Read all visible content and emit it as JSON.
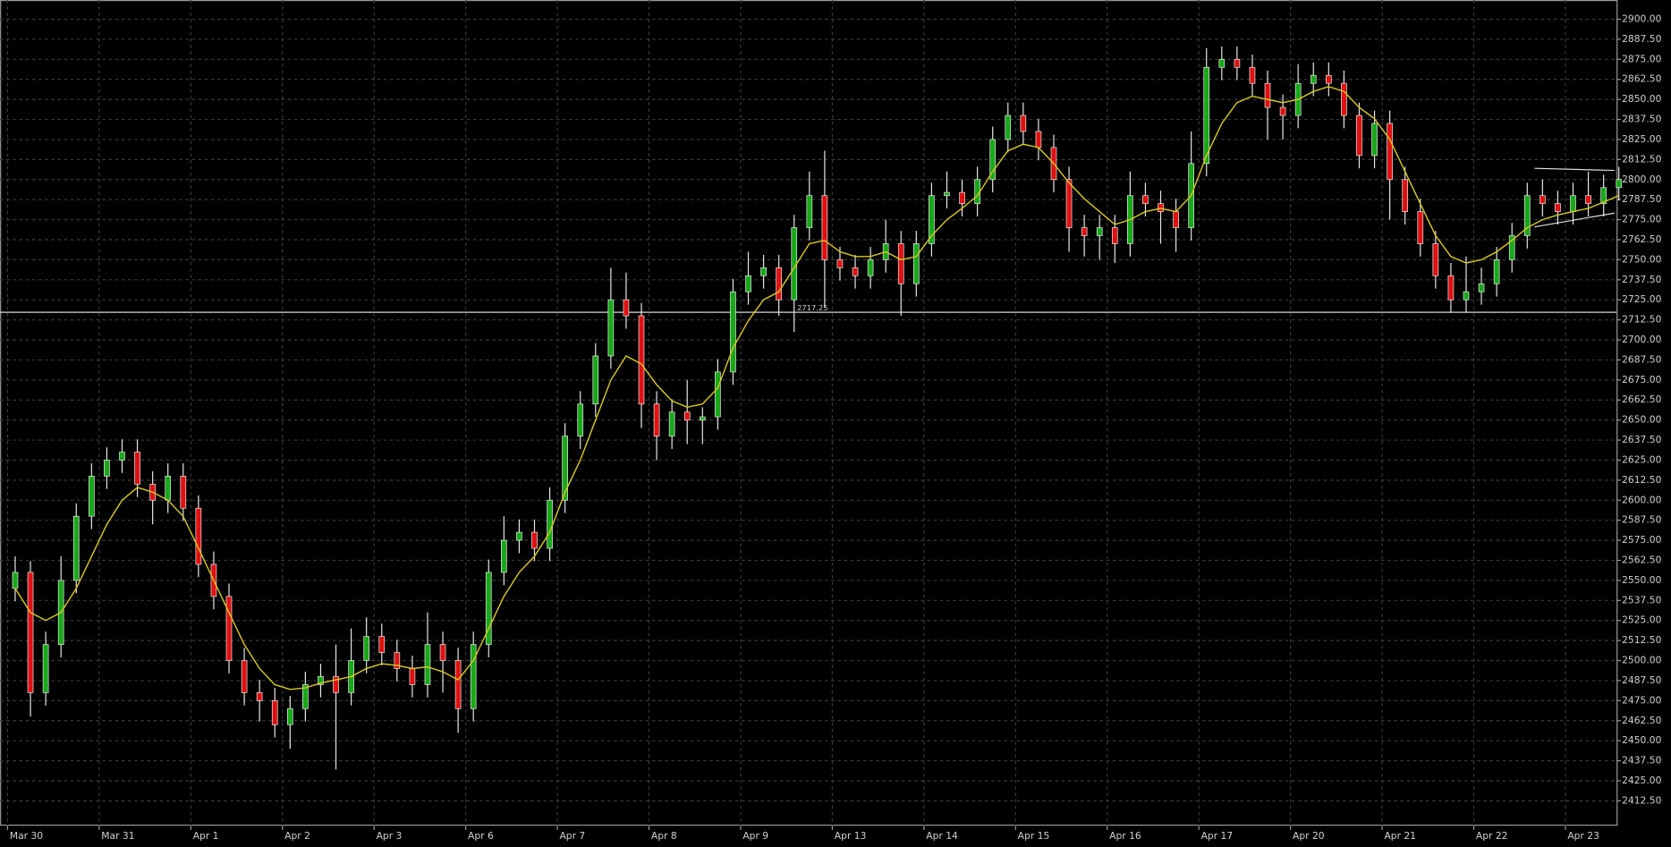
{
  "chart_data": {
    "type": "candlestick",
    "categories": [
      "Mar 30",
      null,
      null,
      null,
      null,
      null,
      "Mar 31",
      null,
      null,
      null,
      null,
      null,
      "Apr 1",
      null,
      null,
      null,
      null,
      null,
      "Apr 2",
      null,
      null,
      null,
      null,
      null,
      "Apr 3",
      null,
      null,
      null,
      null,
      null,
      "Apr 6",
      null,
      null,
      null,
      null,
      null,
      "Apr 7",
      null,
      null,
      null,
      null,
      null,
      "Apr 8",
      null,
      null,
      null,
      null,
      null,
      "Apr 9",
      null,
      null,
      null,
      null,
      null,
      "Apr 13",
      null,
      null,
      null,
      null,
      null,
      "Apr 14",
      null,
      null,
      null,
      null,
      null,
      "Apr 15",
      null,
      null,
      null,
      null,
      null,
      "Apr 16",
      null,
      null,
      null,
      null,
      null,
      "Apr 17",
      null,
      null,
      null,
      null,
      null,
      "Apr 20",
      null,
      null,
      null,
      null,
      null,
      "Apr 21",
      null,
      null,
      null,
      null,
      null,
      "Apr 22",
      null,
      null,
      null,
      null,
      null,
      "Apr 23",
      null,
      null,
      null
    ],
    "open": [
      2545,
      2555,
      2480,
      2510,
      2550,
      2590,
      2615,
      2625,
      2630,
      2610,
      2600,
      2615,
      2595,
      2560,
      2540,
      2500,
      2480,
      2475,
      2460,
      2470,
      2485,
      2490,
      2480,
      2500,
      2515,
      2505,
      2495,
      2485,
      2510,
      2500,
      2470,
      2510,
      2555,
      2575,
      2580,
      2570,
      2600,
      2640,
      2660,
      2690,
      2725,
      2715,
      2660,
      2640,
      2655,
      2650,
      2652,
      2680,
      2730,
      2740,
      2745,
      2725,
      2770,
      2790,
      2750,
      2745,
      2740,
      2750,
      2760,
      2735,
      2760,
      2790,
      2792,
      2785,
      2800,
      2825,
      2840,
      2830,
      2820,
      2800,
      2770,
      2765,
      2770,
      2760,
      2790,
      2785,
      2780,
      2770,
      2810,
      2870,
      2875,
      2870,
      2860,
      2845,
      2840,
      2860,
      2865,
      2860,
      2840,
      2815,
      2835,
      2800,
      2780,
      2760,
      2740,
      2725,
      2730,
      2735,
      2750,
      2765,
      2790,
      2785,
      2780,
      2790,
      2785,
      2795
    ],
    "high": [
      2565,
      2562,
      2518,
      2565,
      2598,
      2623,
      2633,
      2638,
      2638,
      2618,
      2623,
      2623,
      2603,
      2568,
      2548,
      2508,
      2488,
      2483,
      2478,
      2493,
      2498,
      2510,
      2520,
      2527,
      2523,
      2513,
      2503,
      2530,
      2518,
      2508,
      2518,
      2563,
      2590,
      2588,
      2588,
      2608,
      2648,
      2668,
      2698,
      2745,
      2742,
      2723,
      2668,
      2663,
      2675,
      2658,
      2688,
      2738,
      2755,
      2753,
      2753,
      2778,
      2805,
      2818,
      2758,
      2753,
      2758,
      2775,
      2768,
      2768,
      2798,
      2805,
      2800,
      2808,
      2833,
      2848,
      2848,
      2838,
      2828,
      2808,
      2778,
      2778,
      2778,
      2805,
      2798,
      2793,
      2788,
      2830,
      2882,
      2883,
      2883,
      2878,
      2868,
      2853,
      2872,
      2873,
      2873,
      2868,
      2848,
      2843,
      2843,
      2808,
      2788,
      2768,
      2748,
      2752,
      2745,
      2758,
      2773,
      2798,
      2800,
      2793,
      2798,
      2805,
      2803,
      2808
    ],
    "low": [
      2537,
      2465,
      2472,
      2502,
      2542,
      2582,
      2607,
      2617,
      2602,
      2585,
      2592,
      2587,
      2552,
      2532,
      2492,
      2472,
      2462,
      2452,
      2445,
      2462,
      2477,
      2432,
      2472,
      2492,
      2497,
      2487,
      2477,
      2477,
      2480,
      2455,
      2462,
      2502,
      2547,
      2567,
      2562,
      2562,
      2592,
      2632,
      2652,
      2682,
      2707,
      2645,
      2625,
      2632,
      2635,
      2635,
      2644,
      2672,
      2722,
      2732,
      2715,
      2705,
      2762,
      2720,
      2737,
      2732,
      2732,
      2742,
      2715,
      2727,
      2752,
      2782,
      2777,
      2777,
      2792,
      2817,
      2822,
      2812,
      2792,
      2755,
      2752,
      2750,
      2748,
      2752,
      2777,
      2760,
      2755,
      2762,
      2802,
      2862,
      2862,
      2852,
      2825,
      2825,
      2832,
      2852,
      2852,
      2832,
      2807,
      2807,
      2775,
      2772,
      2752,
      2732,
      2717,
      2717,
      2722,
      2727,
      2742,
      2757,
      2777,
      2772,
      2772,
      2777,
      2777,
      2787
    ],
    "close": [
      2555,
      2480,
      2510,
      2550,
      2590,
      2615,
      2625,
      2630,
      2610,
      2600,
      2615,
      2595,
      2560,
      2540,
      2500,
      2480,
      2475,
      2460,
      2470,
      2485,
      2490,
      2480,
      2500,
      2515,
      2505,
      2495,
      2485,
      2510,
      2500,
      2470,
      2510,
      2555,
      2575,
      2580,
      2570,
      2600,
      2640,
      2660,
      2690,
      2725,
      2715,
      2660,
      2640,
      2655,
      2650,
      2652,
      2680,
      2730,
      2740,
      2745,
      2725,
      2770,
      2790,
      2750,
      2745,
      2740,
      2750,
      2760,
      2735,
      2760,
      2790,
      2792,
      2785,
      2800,
      2825,
      2840,
      2830,
      2820,
      2800,
      2770,
      2765,
      2770,
      2760,
      2790,
      2785,
      2780,
      2770,
      2810,
      2870,
      2875,
      2870,
      2860,
      2845,
      2840,
      2860,
      2865,
      2860,
      2840,
      2815,
      2835,
      2800,
      2780,
      2760,
      2740,
      2725,
      2730,
      2735,
      2750,
      2765,
      2790,
      2785,
      2780,
      2790,
      2785,
      2795,
      2800
    ],
    "up_color": "#18a818",
    "down_color": "#e01010",
    "ma": {
      "color": "#d8c820",
      "values": [
        2545,
        2530,
        2525,
        2530,
        2545,
        2565,
        2585,
        2600,
        2608,
        2605,
        2600,
        2590,
        2570,
        2550,
        2530,
        2510,
        2495,
        2485,
        2482,
        2483,
        2486,
        2488,
        2490,
        2495,
        2498,
        2497,
        2495,
        2496,
        2493,
        2488,
        2500,
        2520,
        2540,
        2555,
        2565,
        2580,
        2605,
        2625,
        2650,
        2675,
        2690,
        2685,
        2672,
        2662,
        2658,
        2660,
        2670,
        2695,
        2712,
        2725,
        2730,
        2745,
        2760,
        2762,
        2755,
        2752,
        2752,
        2755,
        2750,
        2752,
        2765,
        2775,
        2782,
        2790,
        2805,
        2818,
        2822,
        2820,
        2810,
        2798,
        2788,
        2780,
        2772,
        2775,
        2780,
        2782,
        2780,
        2790,
        2815,
        2835,
        2848,
        2852,
        2850,
        2848,
        2850,
        2855,
        2858,
        2855,
        2845,
        2838,
        2825,
        2805,
        2785,
        2765,
        2752,
        2748,
        2750,
        2755,
        2762,
        2770,
        2775,
        2778,
        2780,
        2782,
        2786,
        2790
      ]
    },
    "hline": 2717.25,
    "ylim": [
      2397,
      2912
    ],
    "yticks": [
      {
        "value": 2412.5,
        "label": "2412.50"
      },
      {
        "value": 2425,
        "label": "2425.00"
      },
      {
        "value": 2437.5,
        "label": "2437.50"
      },
      {
        "value": 2450,
        "label": "2450.00"
      },
      {
        "value": 2462.5,
        "label": "2462.50"
      },
      {
        "value": 2475,
        "label": "2475.00"
      },
      {
        "value": 2487.5,
        "label": "2487.50"
      },
      {
        "value": 2500,
        "label": "2500.00"
      },
      {
        "value": 2512.5,
        "label": "2512.50"
      },
      {
        "value": 2525,
        "label": "2525.00"
      },
      {
        "value": 2537.5,
        "label": "2537.50"
      },
      {
        "value": 2550,
        "label": "2550.00"
      },
      {
        "value": 2562.5,
        "label": "2562.50"
      },
      {
        "value": 2575,
        "label": "2575.00"
      },
      {
        "value": 2587.5,
        "label": "2587.50"
      },
      {
        "value": 2600,
        "label": "2600.00"
      },
      {
        "value": 2612.5,
        "label": "2612.50"
      },
      {
        "value": 2625,
        "label": "2625.00"
      },
      {
        "value": 2637.5,
        "label": "2637.50"
      },
      {
        "value": 2650,
        "label": "2650.00"
      },
      {
        "value": 2662.5,
        "label": "2662.50"
      },
      {
        "value": 2675,
        "label": "2675.00"
      },
      {
        "value": 2687.5,
        "label": "2687.50"
      },
      {
        "value": 2700,
        "label": "2700.00"
      },
      {
        "value": 2712.5,
        "label": "2712.50"
      },
      {
        "value": 2725,
        "label": "2725.00"
      },
      {
        "value": 2737.5,
        "label": "2737.50"
      },
      {
        "value": 2750,
        "label": "2750.00"
      },
      {
        "value": 2762.5,
        "label": "2762.50"
      },
      {
        "value": 2775,
        "label": "2775.00"
      },
      {
        "value": 2787.5,
        "label": "2787.50"
      },
      {
        "value": 2800,
        "label": "2800.00"
      },
      {
        "value": 2812.5,
        "label": "2812.50"
      },
      {
        "value": 2825,
        "label": "2825.00"
      },
      {
        "value": 2837.5,
        "label": "2837.50"
      },
      {
        "value": 2850,
        "label": "2850.00"
      },
      {
        "value": 2862.5,
        "label": "2862.50"
      },
      {
        "value": 2875,
        "label": "2875.00"
      },
      {
        "value": 2887.5,
        "label": "2887.50"
      },
      {
        "value": 2900,
        "label": "2900.00"
      }
    ],
    "grid": true
  }
}
